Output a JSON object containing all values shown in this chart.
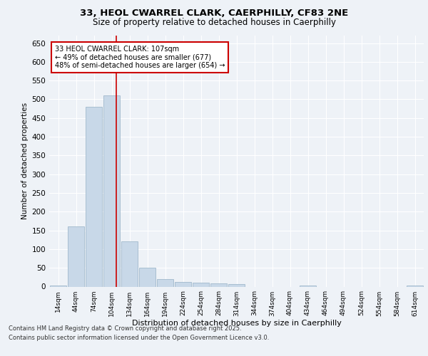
{
  "title_line1": "33, HEOL CWARREL CLARK, CAERPHILLY, CF83 2NE",
  "title_line2": "Size of property relative to detached houses in Caerphilly",
  "xlabel": "Distribution of detached houses by size in Caerphilly",
  "ylabel": "Number of detached properties",
  "categories": [
    "14sqm",
    "44sqm",
    "74sqm",
    "104sqm",
    "134sqm",
    "164sqm",
    "194sqm",
    "224sqm",
    "254sqm",
    "284sqm",
    "314sqm",
    "344sqm",
    "374sqm",
    "404sqm",
    "434sqm",
    "464sqm",
    "494sqm",
    "524sqm",
    "554sqm",
    "584sqm",
    "614sqm"
  ],
  "values": [
    3,
    160,
    480,
    510,
    120,
    50,
    20,
    12,
    10,
    8,
    6,
    0,
    0,
    0,
    3,
    0,
    0,
    0,
    0,
    0,
    3
  ],
  "bar_color": "#c8d8e8",
  "bar_edgecolor": "#a0b8cc",
  "vline_x_index": 3.27,
  "vline_color": "#cc0000",
  "ylim": [
    0,
    670
  ],
  "yticks": [
    0,
    50,
    100,
    150,
    200,
    250,
    300,
    350,
    400,
    450,
    500,
    550,
    600,
    650
  ],
  "annotation_text": "33 HEOL CWARREL CLARK: 107sqm\n← 49% of detached houses are smaller (677)\n48% of semi-detached houses are larger (654) →",
  "annotation_color": "#cc0000",
  "bg_color": "#eef2f7",
  "plot_bg_color": "#eef2f7",
  "footer_line1": "Contains HM Land Registry data © Crown copyright and database right 2025.",
  "footer_line2": "Contains public sector information licensed under the Open Government Licence v3.0."
}
